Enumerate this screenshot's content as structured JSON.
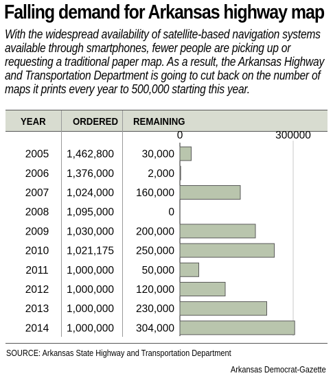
{
  "title": "Falling demand for Arkansas highway map",
  "subtitle": "With the widespread availability of satellite-based navigation systems available through smartphones, fewer people are picking up or requesting a traditional paper map. As a result, the Arkansas Highway and Transportation Department is going to cut back on the number of maps it prints every year to 500,000 starting this year.",
  "source": "SOURCE: Arkansas State Highway and Transportation Department",
  "credit": "Arkansas Democrat-Gazette",
  "colors": {
    "bar_fill": "#b9c5ad",
    "bar_stroke": "#5a5a5a",
    "header_band": "#d8dcd0"
  },
  "chart_data": {
    "type": "table",
    "columns": [
      "YEAR",
      "ORDERED",
      "REMAINING"
    ],
    "rows": [
      {
        "year": "2005",
        "ordered": "1,462,800",
        "remaining": "30,000"
      },
      {
        "year": "2006",
        "ordered": "1,376,000",
        "remaining": "2,000"
      },
      {
        "year": "2007",
        "ordered": "1,024,000",
        "remaining": "160,000"
      },
      {
        "year": "2008",
        "ordered": "1,095,000",
        "remaining": "0"
      },
      {
        "year": "2009",
        "ordered": "1,030,000",
        "remaining": "200,000"
      },
      {
        "year": "2010",
        "ordered": "1,021,175",
        "remaining": "250,000"
      },
      {
        "year": "2011",
        "ordered": "1,000,000",
        "remaining": "50,000"
      },
      {
        "year": "2012",
        "ordered": "1,000,000",
        "remaining": "120,000"
      },
      {
        "year": "2013",
        "ordered": "1,000,000",
        "remaining": "230,000"
      },
      {
        "year": "2014",
        "ordered": "1,000,000",
        "remaining": "304,000"
      }
    ],
    "bar_series": {
      "categories": [
        "2005",
        "2006",
        "2007",
        "2008",
        "2009",
        "2010",
        "2011",
        "2012",
        "2013",
        "2014"
      ],
      "values": [
        30000,
        2000,
        160000,
        0,
        200000,
        250000,
        50000,
        120000,
        230000,
        304000
      ]
    },
    "bar_axis": {
      "xlim": [
        0,
        300000
      ],
      "ticks": [
        "0",
        "300000"
      ]
    }
  }
}
